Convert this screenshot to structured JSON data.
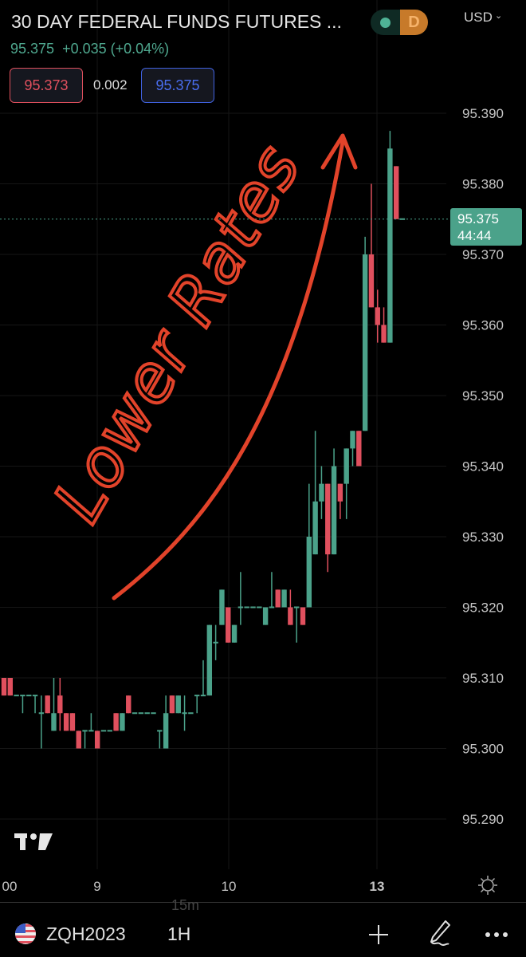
{
  "header": {
    "title": "30 DAY FEDERAL FUNDS FUTURES ...",
    "market_status_letter": "D",
    "currency": "USD",
    "last_price": "95.375",
    "change": "+0.035 (+0.04%)",
    "bid": "95.373",
    "spread": "0.002",
    "ask": "95.375"
  },
  "colors": {
    "up": "#4ba28a",
    "down": "#e0505e",
    "annotation": "#e2432a",
    "background": "#000000"
  },
  "price_axis": {
    "labels": [
      "95.390",
      "95.380",
      "95.370",
      "95.360",
      "95.350",
      "95.340",
      "95.330",
      "95.320",
      "95.310",
      "95.300",
      "95.290"
    ],
    "last_price_label": "95.375",
    "countdown": "44:44"
  },
  "time_axis": {
    "labels": [
      "00",
      "9",
      "10",
      "13"
    ],
    "settings_icon": "sun-icon"
  },
  "annotation": {
    "text": "Lower Rates",
    "arrow": "up-right"
  },
  "chart_data": {
    "type": "candlestick",
    "ylim": [
      95.285,
      95.395
    ],
    "last_price": 95.375,
    "candles": [
      [
        95.31,
        95.31,
        95.3075,
        95.3075
      ],
      [
        95.31,
        95.31,
        95.3075,
        95.3075
      ],
      [
        95.3075,
        95.3075,
        95.3075,
        95.3075
      ],
      [
        95.3075,
        95.3075,
        95.305,
        95.3075
      ],
      [
        95.3075,
        95.3075,
        95.3075,
        95.3075
      ],
      [
        95.3075,
        95.3075,
        95.305,
        95.3075
      ],
      [
        95.305,
        95.3075,
        95.3,
        95.305
      ],
      [
        95.3075,
        95.3075,
        95.305,
        95.305
      ],
      [
        95.3025,
        95.31,
        95.3025,
        95.305
      ],
      [
        95.3075,
        95.31,
        95.3025,
        95.305
      ],
      [
        95.305,
        95.305,
        95.3025,
        95.3025
      ],
      [
        95.305,
        95.305,
        95.3025,
        95.3025
      ],
      [
        95.3025,
        95.3025,
        95.3,
        95.3
      ],
      [
        95.3025,
        95.3025,
        95.3,
        95.3025
      ],
      [
        95.3025,
        95.305,
        95.3025,
        95.3025
      ],
      [
        95.3025,
        95.3025,
        95.3,
        95.3
      ],
      [
        95.3025,
        95.3025,
        95.3025,
        95.3025
      ],
      [
        95.3025,
        95.3025,
        95.3025,
        95.3025
      ],
      [
        95.305,
        95.305,
        95.3025,
        95.3025
      ],
      [
        95.3025,
        95.305,
        95.3025,
        95.305
      ],
      [
        95.3075,
        95.3075,
        95.305,
        95.305
      ],
      [
        95.305,
        95.305,
        95.305,
        95.305
      ],
      [
        95.305,
        95.305,
        95.305,
        95.305
      ],
      [
        95.305,
        95.305,
        95.305,
        95.305
      ],
      [
        95.305,
        95.305,
        95.305,
        95.305
      ],
      [
        95.3025,
        95.3025,
        95.3,
        95.3025
      ],
      [
        95.3,
        95.3075,
        95.3,
        95.305
      ],
      [
        95.3075,
        95.3075,
        95.305,
        95.305
      ],
      [
        95.305,
        95.3075,
        95.305,
        95.3075
      ],
      [
        95.305,
        95.3075,
        95.3025,
        95.305
      ],
      [
        95.305,
        95.305,
        95.305,
        95.305
      ],
      [
        95.3075,
        95.3075,
        95.305,
        95.3075
      ],
      [
        95.3075,
        95.3125,
        95.3075,
        95.3075
      ],
      [
        95.3075,
        95.3175,
        95.3075,
        95.3175
      ],
      [
        95.315,
        95.3175,
        95.3125,
        95.315
      ],
      [
        95.3175,
        95.3225,
        95.3175,
        95.3225
      ],
      [
        95.32,
        95.32,
        95.315,
        95.315
      ],
      [
        95.315,
        95.3175,
        95.315,
        95.3175
      ],
      [
        95.32,
        95.325,
        95.3175,
        95.32
      ],
      [
        95.32,
        95.32,
        95.32,
        95.32
      ],
      [
        95.32,
        95.32,
        95.32,
        95.32
      ],
      [
        95.32,
        95.32,
        95.32,
        95.32
      ],
      [
        95.3175,
        95.32,
        95.3175,
        95.32
      ],
      [
        95.32,
        95.325,
        95.32,
        95.32
      ],
      [
        95.3225,
        95.3225,
        95.32,
        95.32
      ],
      [
        95.32,
        95.3225,
        95.32,
        95.3225
      ],
      [
        95.32,
        95.3225,
        95.3175,
        95.3175
      ],
      [
        95.32,
        95.32,
        95.315,
        95.32
      ],
      [
        95.32,
        95.32,
        95.3175,
        95.3175
      ],
      [
        95.32,
        95.3375,
        95.32,
        95.33
      ],
      [
        95.3275,
        95.345,
        95.3275,
        95.335
      ],
      [
        95.335,
        95.34,
        95.3325,
        95.3375
      ],
      [
        95.3375,
        95.3375,
        95.325,
        95.3275
      ],
      [
        95.3275,
        95.3425,
        95.3275,
        95.34
      ],
      [
        95.3375,
        95.3375,
        95.3325,
        95.335
      ],
      [
        95.3375,
        95.3425,
        95.3325,
        95.3425
      ],
      [
        95.3425,
        95.345,
        95.34,
        95.345
      ],
      [
        95.345,
        95.345,
        95.34,
        95.34
      ],
      [
        95.345,
        95.3725,
        95.345,
        95.37
      ],
      [
        95.37,
        95.38,
        95.3625,
        95.3625
      ],
      [
        95.3625,
        95.365,
        95.3575,
        95.36
      ],
      [
        95.36,
        95.3625,
        95.3575,
        95.3575
      ],
      [
        95.3575,
        95.3875,
        95.3575,
        95.385
      ],
      [
        95.3825,
        95.3825,
        95.375,
        95.375
      ],
      [
        95.375,
        95.375,
        95.375,
        95.375
      ]
    ]
  },
  "bottom_bar": {
    "timeframe_hint": "15m",
    "symbol": "ZQH2023",
    "interval": "1H",
    "add_icon": "plus-icon",
    "draw_icon": "pen-icon",
    "more_icon": "more-dots-icon"
  }
}
